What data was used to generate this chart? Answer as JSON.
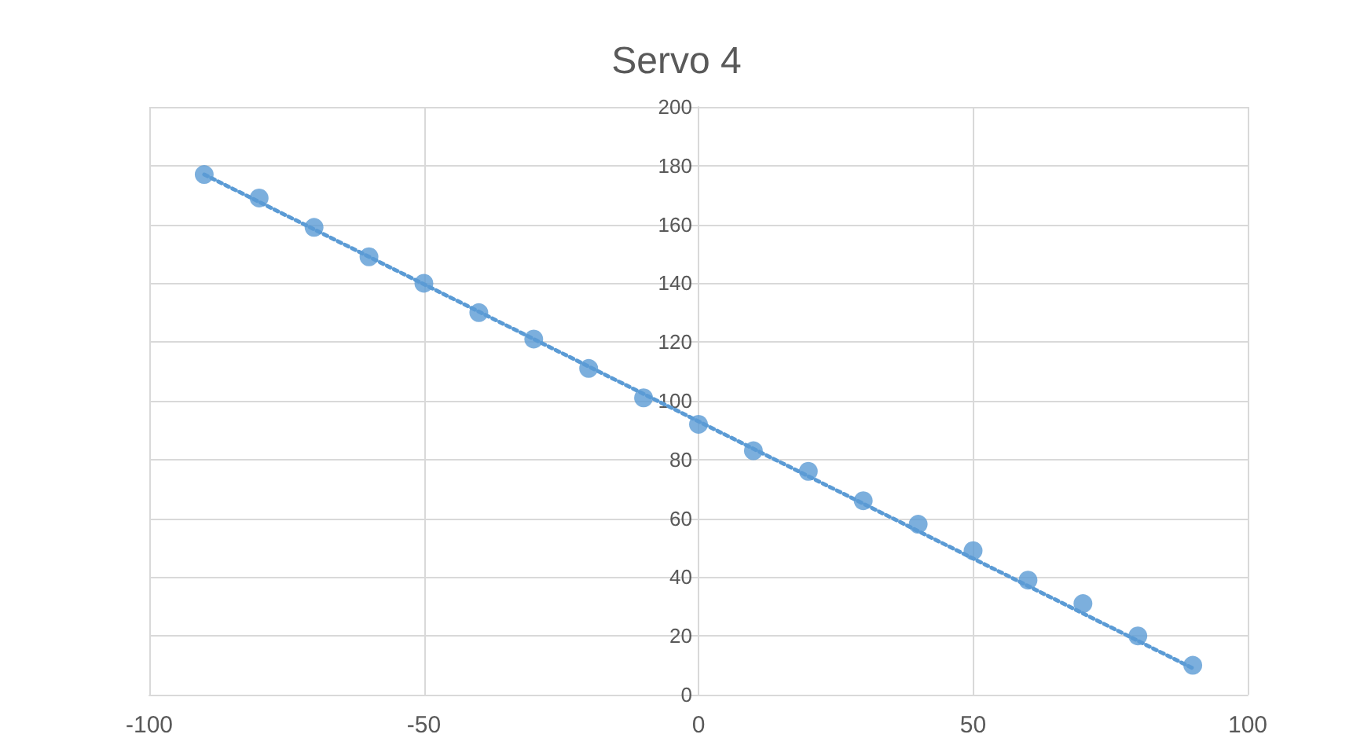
{
  "chart_data": {
    "type": "scatter",
    "title": "Servo 4",
    "x": [
      -90,
      -80,
      -70,
      -60,
      -50,
      -40,
      -30,
      -20,
      -10,
      0,
      10,
      20,
      30,
      40,
      50,
      60,
      70,
      80,
      90
    ],
    "series": [
      {
        "type": "scatter",
        "color": "#5b9bd5",
        "marker": "circle",
        "values": [
          177,
          169,
          159,
          149,
          140,
          130,
          121,
          111,
          101,
          92,
          83,
          76,
          66,
          58,
          49,
          39,
          31,
          20,
          10
        ]
      },
      {
        "type": "line",
        "color": "#5b9bd5",
        "line_style": "dotted",
        "marker": "none",
        "x": [
          -90,
          90
        ],
        "values": [
          177,
          9
        ]
      }
    ],
    "xlim": [
      -100,
      100
    ],
    "xticks": [
      -100,
      -50,
      0,
      50,
      100
    ],
    "ylim": [
      0,
      200
    ],
    "yticks": [
      0,
      20,
      40,
      60,
      80,
      100,
      120,
      140,
      160,
      180,
      200
    ],
    "grid": true
  }
}
